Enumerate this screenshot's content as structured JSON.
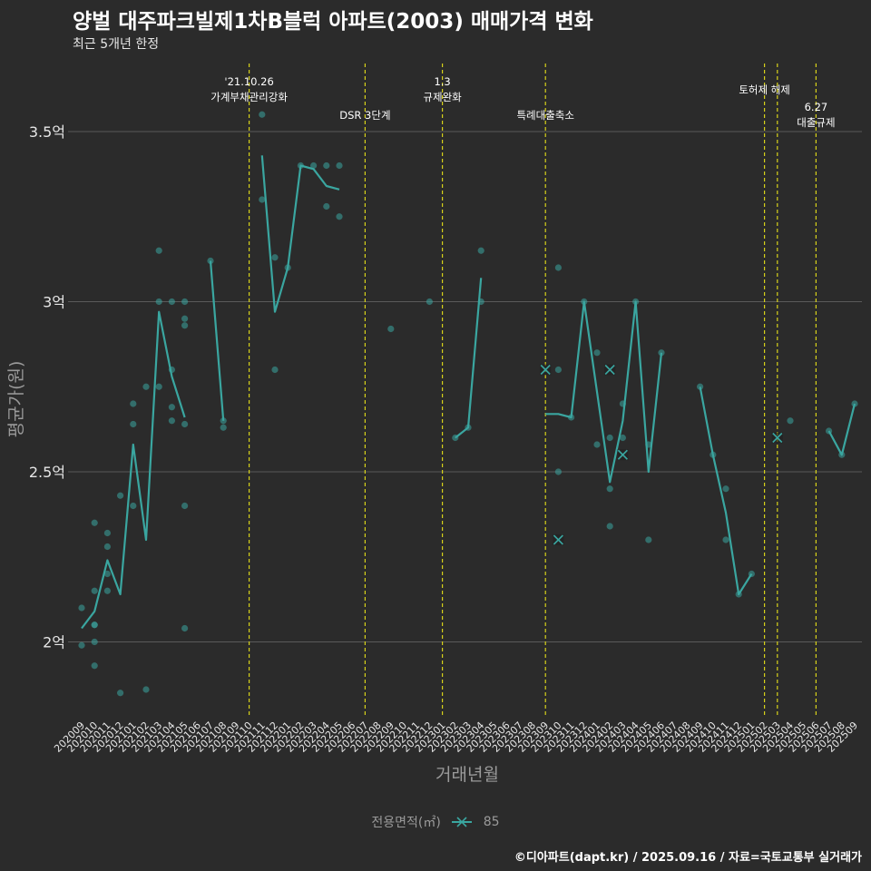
{
  "title": "양벌 대주파크빌제1차B블럭 아파트(2003) 매매가격 변화",
  "subtitle": "최근 5개년 한정",
  "caption": "©디아파트(dapt.kr) / 2025.09.16 / 자료=국토교통부 실거래가",
  "legend": {
    "title": "전용면적(㎡)",
    "item": "85"
  },
  "colors": {
    "series": "#3aa6a0",
    "event_line": "#d7d21a",
    "grid": "#5a5a5a",
    "background": "#2b2b2b"
  },
  "chart_data": {
    "type": "line",
    "xlabel": "거래년월",
    "ylabel": "평균가(원)",
    "ylim": [
      1.78,
      3.7
    ],
    "yticks": [
      {
        "value": 2.0,
        "label": "2억"
      },
      {
        "value": 2.5,
        "label": "2.5억"
      },
      {
        "value": 3.0,
        "label": "3억"
      },
      {
        "value": 3.5,
        "label": "3.5억"
      }
    ],
    "categories": [
      "202009",
      "202010",
      "202011",
      "202012",
      "202101",
      "202102",
      "202103",
      "202104",
      "202105",
      "202106",
      "202107",
      "202108",
      "202109",
      "202110",
      "202111",
      "202112",
      "202201",
      "202202",
      "202203",
      "202204",
      "202205",
      "202206",
      "202207",
      "202208",
      "202209",
      "202210",
      "202211",
      "202212",
      "202301",
      "202302",
      "202303",
      "202304",
      "202305",
      "202306",
      "202307",
      "202308",
      "202309",
      "202310",
      "202311",
      "202312",
      "202401",
      "202402",
      "202403",
      "202404",
      "202405",
      "202406",
      "202407",
      "202408",
      "202409",
      "202410",
      "202411",
      "202412",
      "202501",
      "202502",
      "202503",
      "202504",
      "202505",
      "202506",
      "202507",
      "202508",
      "202509"
    ],
    "events": [
      {
        "x": "202110",
        "label": [
          "'21.10.26",
          "가계부채관리강화"
        ],
        "level": 1
      },
      {
        "x": "202207",
        "label": [
          "DSR 3단계"
        ],
        "level": 2
      },
      {
        "x": "202301",
        "label": [
          "1.3",
          "규제완화"
        ],
        "level": 1
      },
      {
        "x": "202309",
        "label": [
          "특례대출축소"
        ],
        "level": 2
      },
      {
        "x": "202502",
        "label": [
          "토허제 해제"
        ],
        "level": 0
      },
      {
        "x": "202503",
        "label": [],
        "level": 0
      },
      {
        "x": "202506",
        "label": [
          "6.27",
          "대출규제"
        ],
        "level": 3
      }
    ],
    "series": [
      {
        "name": "85",
        "line_segments": [
          [
            [
              "202009",
              2.04
            ],
            [
              "202010",
              2.09
            ],
            [
              "202011",
              2.24
            ],
            [
              "202012",
              2.14
            ],
            [
              "202101",
              2.58
            ],
            [
              "202102",
              2.3
            ],
            [
              "202103",
              2.97
            ],
            [
              "202104",
              2.78
            ],
            [
              "202105",
              2.66
            ]
          ],
          [
            [
              "202107",
              3.12
            ],
            [
              "202108",
              2.65
            ]
          ],
          [
            [
              "202111",
              3.43
            ],
            [
              "202112",
              2.97
            ],
            [
              "202201",
              3.1
            ],
            [
              "202202",
              3.4
            ],
            [
              "202203",
              3.39
            ],
            [
              "202204",
              3.34
            ],
            [
              "202205",
              3.33
            ]
          ],
          [
            [
              "202302",
              2.6
            ],
            [
              "202303",
              2.63
            ],
            [
              "202304",
              3.07
            ]
          ],
          [
            [
              "202309",
              2.67
            ],
            [
              "202310",
              2.67
            ],
            [
              "202311",
              2.66
            ],
            [
              "202312",
              3.0
            ],
            [
              "202402",
              2.47
            ],
            [
              "202403",
              2.65
            ],
            [
              "202404",
              3.0
            ],
            [
              "202405",
              2.5
            ],
            [
              "202406",
              2.85
            ]
          ],
          [
            [
              "202409",
              2.75
            ],
            [
              "202410",
              2.55
            ],
            [
              "202411",
              2.38
            ],
            [
              "202412",
              2.14
            ],
            [
              "202501",
              2.2
            ]
          ],
          [
            [
              "202507",
              2.62
            ],
            [
              "202508",
              2.55
            ],
            [
              "202509",
              2.7
            ]
          ]
        ],
        "points": [
          [
            "202009",
            2.1
          ],
          [
            "202009",
            1.99
          ],
          [
            "202010",
            2.35
          ],
          [
            "202010",
            2.15
          ],
          [
            "202010",
            2.05
          ],
          [
            "202010",
            2.05
          ],
          [
            "202010",
            2.0
          ],
          [
            "202010",
            1.93
          ],
          [
            "202011",
            2.32
          ],
          [
            "202011",
            2.28
          ],
          [
            "202011",
            2.2
          ],
          [
            "202011",
            2.15
          ],
          [
            "202012",
            2.43
          ],
          [
            "202012",
            1.85
          ],
          [
            "202101",
            2.7
          ],
          [
            "202101",
            2.64
          ],
          [
            "202101",
            2.4
          ],
          [
            "202102",
            2.75
          ],
          [
            "202102",
            1.86
          ],
          [
            "202103",
            3.15
          ],
          [
            "202103",
            3.0
          ],
          [
            "202103",
            2.75
          ],
          [
            "202104",
            3.0
          ],
          [
            "202104",
            2.8
          ],
          [
            "202104",
            2.69
          ],
          [
            "202104",
            2.65
          ],
          [
            "202105",
            3.0
          ],
          [
            "202105",
            2.95
          ],
          [
            "202105",
            2.93
          ],
          [
            "202105",
            2.64
          ],
          [
            "202105",
            2.4
          ],
          [
            "202105",
            2.04
          ],
          [
            "202107",
            3.12
          ],
          [
            "202108",
            2.65
          ],
          [
            "202108",
            2.63
          ],
          [
            "202111",
            3.55
          ],
          [
            "202111",
            3.3
          ],
          [
            "202112",
            3.13
          ],
          [
            "202112",
            2.8
          ],
          [
            "202201",
            3.1
          ],
          [
            "202202",
            3.4
          ],
          [
            "202203",
            3.4
          ],
          [
            "202204",
            3.4
          ],
          [
            "202204",
            3.28
          ],
          [
            "202205",
            3.4
          ],
          [
            "202205",
            3.25
          ],
          [
            "202209",
            2.92
          ],
          [
            "202212",
            3.0
          ],
          [
            "202302",
            2.6
          ],
          [
            "202303",
            2.63
          ],
          [
            "202304",
            3.15
          ],
          [
            "202304",
            3.0
          ],
          [
            "202310",
            3.1
          ],
          [
            "202310",
            2.8
          ],
          [
            "202310",
            2.5
          ],
          [
            "202311",
            2.66
          ],
          [
            "202312",
            3.0
          ],
          [
            "202401",
            2.85
          ],
          [
            "202401",
            2.58
          ],
          [
            "202402",
            2.6
          ],
          [
            "202402",
            2.45
          ],
          [
            "202402",
            2.34
          ],
          [
            "202403",
            2.7
          ],
          [
            "202403",
            2.6
          ],
          [
            "202404",
            3.0
          ],
          [
            "202405",
            2.58
          ],
          [
            "202405",
            2.3
          ],
          [
            "202406",
            2.85
          ],
          [
            "202409",
            2.75
          ],
          [
            "202410",
            2.55
          ],
          [
            "202411",
            2.45
          ],
          [
            "202411",
            2.3
          ],
          [
            "202412",
            2.14
          ],
          [
            "202501",
            2.2
          ],
          [
            "202504",
            2.65
          ],
          [
            "202507",
            2.62
          ],
          [
            "202508",
            2.55
          ],
          [
            "202509",
            2.7
          ]
        ],
        "crosses": [
          [
            "202309",
            2.8
          ],
          [
            "202310",
            2.3
          ],
          [
            "202402",
            2.8
          ],
          [
            "202403",
            2.55
          ],
          [
            "202503",
            2.6
          ]
        ]
      }
    ]
  }
}
